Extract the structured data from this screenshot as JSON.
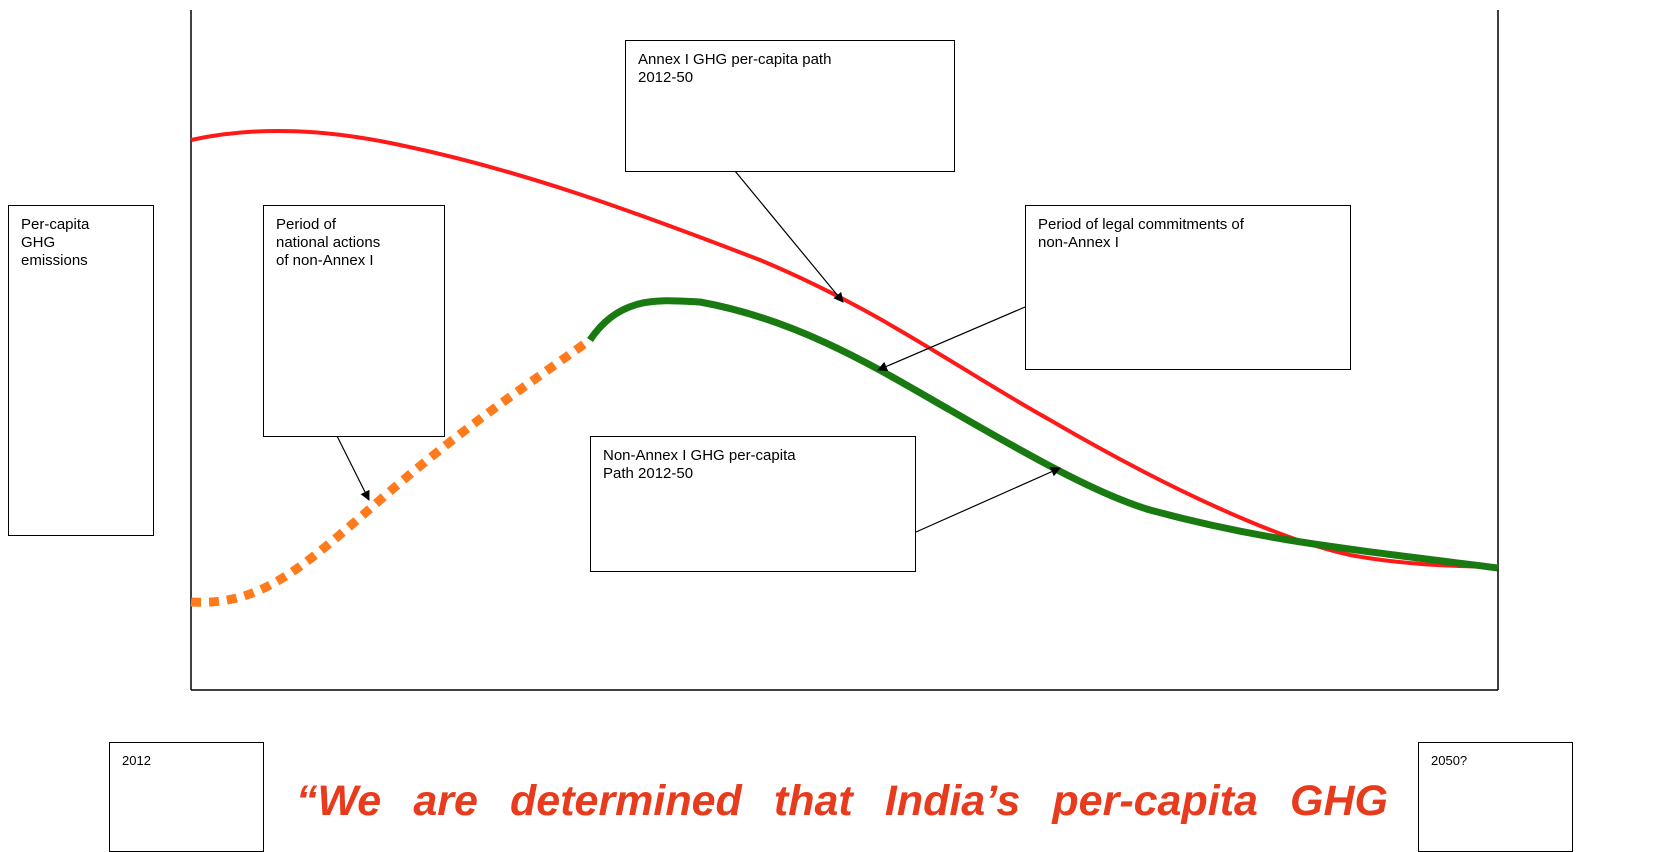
{
  "labels": {
    "y_axis": "Per-capita\nGHG\nemissions",
    "national_actions": "Period of\nnational actions\nof non-Annex I",
    "annex_path": "Annex I GHG per-capita path\n2012-50",
    "legal_commitments": "Period of legal commitments of\nnon-Annex I",
    "non_annex_path": "Non-Annex I GHG per-capita\nPath 2012-50",
    "start_year": "2012",
    "end_year": "2050?"
  },
  "quote": "“We are determined that India’s per-capita GHG",
  "colors": {
    "annex_curve": "#ff1a1a",
    "non_annex_curve": "#1a7a12",
    "dotted_segment": "#ff7a1a",
    "quote_text": "#e83a1c"
  }
}
